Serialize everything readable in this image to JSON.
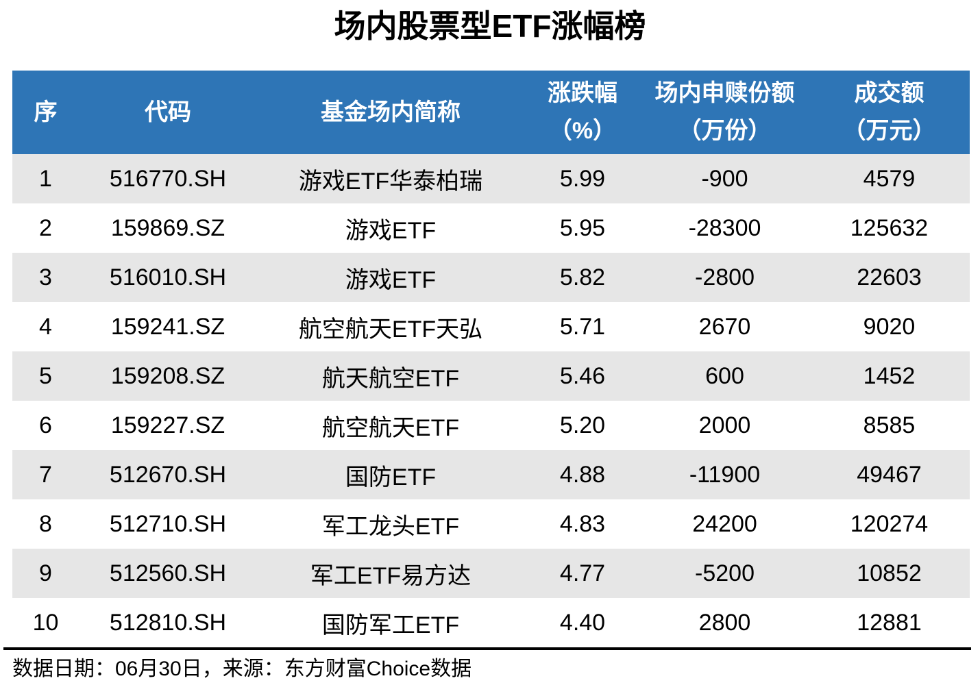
{
  "chart_data": {
    "type": "table",
    "title": "场内股票型ETF涨幅榜",
    "columns": [
      {
        "label": "序",
        "line1": "序",
        "line2": ""
      },
      {
        "label": "代码",
        "line1": "代码",
        "line2": ""
      },
      {
        "label": "基金场内简称",
        "line1": "基金场内简称",
        "line2": ""
      },
      {
        "label": "涨跌幅（%）",
        "line1": "涨跌幅",
        "line2": "（%）"
      },
      {
        "label": "场内申赎份额（万份）",
        "line1": "场内申赎份额",
        "line2": "（万份）"
      },
      {
        "label": "成交额（万元）",
        "line1": "成交额",
        "line2": "（万元）"
      }
    ],
    "rows": [
      [
        "1",
        "516770.SH",
        "游戏ETF华泰柏瑞",
        "5.99",
        "-900",
        "4579"
      ],
      [
        "2",
        "159869.SZ",
        "游戏ETF",
        "5.95",
        "-28300",
        "125632"
      ],
      [
        "3",
        "516010.SH",
        "游戏ETF",
        "5.82",
        "-2800",
        "22603"
      ],
      [
        "4",
        "159241.SZ",
        "航空航天ETF天弘",
        "5.71",
        "2670",
        "9020"
      ],
      [
        "5",
        "159208.SZ",
        "航天航空ETF",
        "5.46",
        "600",
        "1452"
      ],
      [
        "6",
        "159227.SZ",
        "航空航天ETF",
        "5.20",
        "2000",
        "8585"
      ],
      [
        "7",
        "512670.SH",
        "国防ETF",
        "4.88",
        "-11900",
        "49467"
      ],
      [
        "8",
        "512710.SH",
        "军工龙头ETF",
        "4.83",
        "24200",
        "120274"
      ],
      [
        "9",
        "512560.SH",
        "军工ETF易方达",
        "4.77",
        "-5200",
        "10852"
      ],
      [
        "10",
        "512810.SH",
        "国防军工ETF",
        "4.40",
        "2800",
        "12881"
      ]
    ],
    "footer": "数据日期：06月30日，来源：东方财富Choice数据",
    "colors": {
      "header_bg": "#2E75B6",
      "header_text": "#FFFFFF",
      "row_alt_bg": "#E6E6E6",
      "row_bg": "#FFFFFF",
      "text": "#000000",
      "divider": "#000000"
    },
    "layout": {
      "striped": true,
      "header_rows": 1,
      "data_rows": 10
    }
  }
}
